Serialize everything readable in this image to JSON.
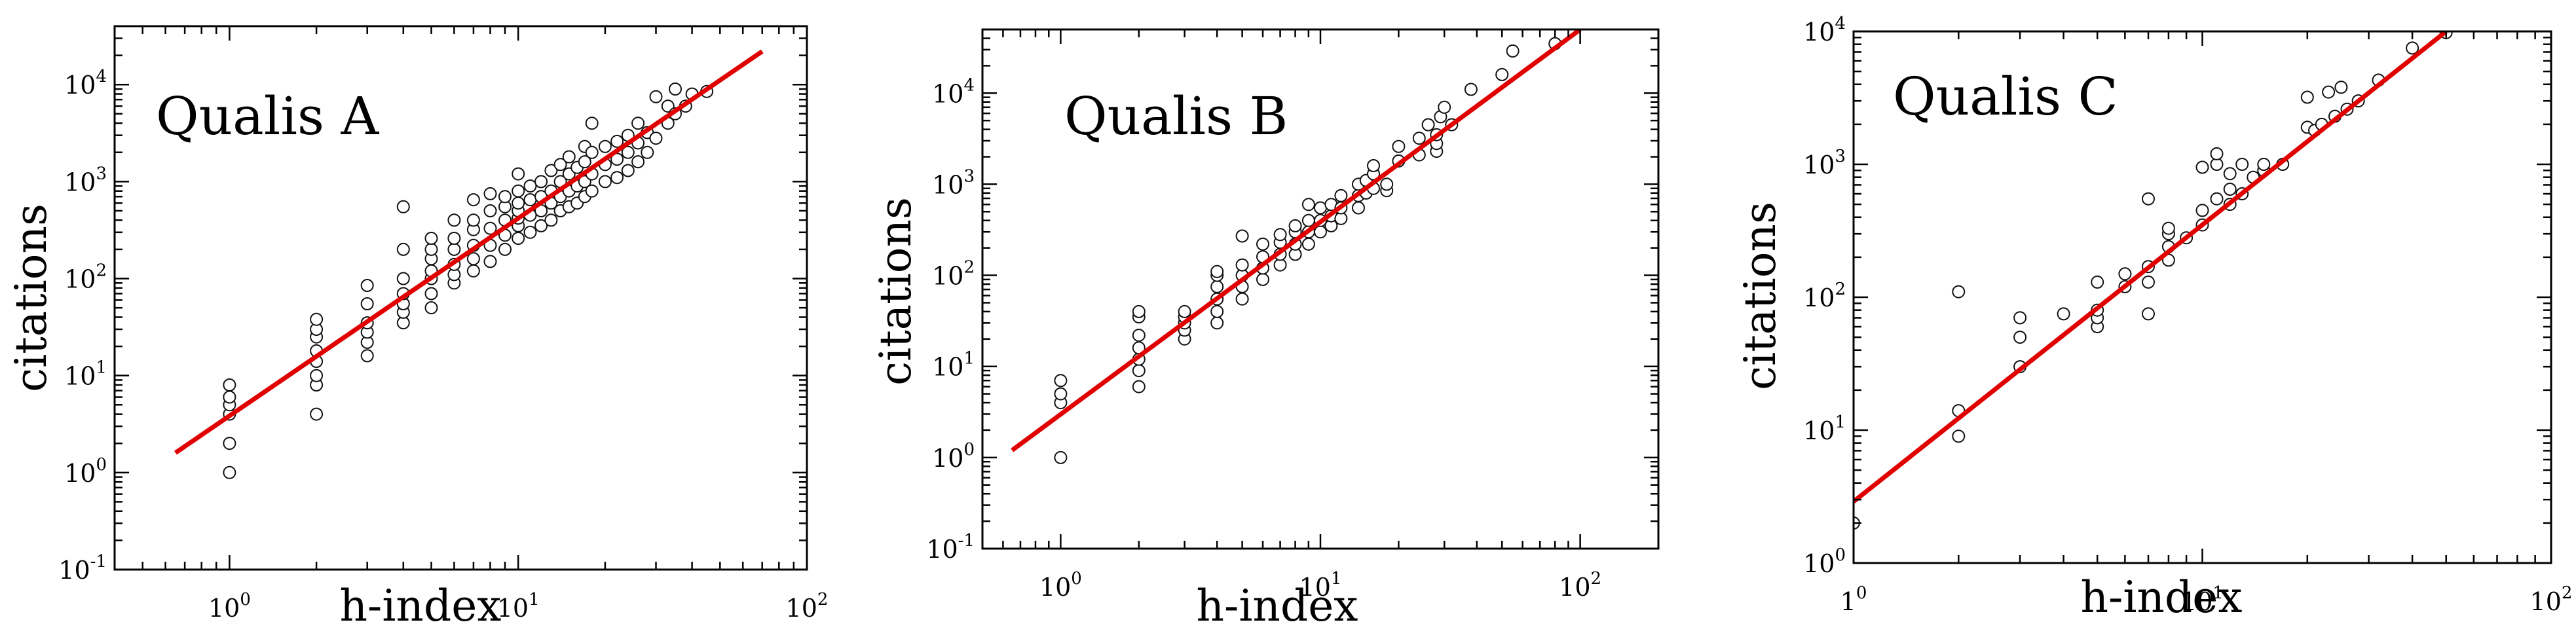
{
  "chart_data": [
    {
      "type": "scatter",
      "title": "Qualis A",
      "xlabel": "h-index",
      "ylabel": "citations",
      "xscale": "log",
      "yscale": "log",
      "xlim": [
        0.4,
        100
      ],
      "ylim": [
        0.1,
        40000
      ],
      "xticks": [
        {
          "base": "10",
          "exp": "0",
          "value": 1
        },
        {
          "base": "10",
          "exp": "1",
          "value": 10
        },
        {
          "base": "10",
          "exp": "2",
          "value": 100
        }
      ],
      "yticks": [
        {
          "base": "10",
          "exp": "-1",
          "value": 0.1
        },
        {
          "base": "10",
          "exp": "0",
          "value": 1
        },
        {
          "base": "10",
          "exp": "1",
          "value": 10
        },
        {
          "base": "10",
          "exp": "2",
          "value": 100
        },
        {
          "base": "10",
          "exp": "3",
          "value": 1000
        },
        {
          "base": "10",
          "exp": "4",
          "value": 10000
        }
      ],
      "grid": false,
      "fit_line": {
        "color": "#e00000",
        "x": [
          0.65,
          70
        ],
        "y": [
          1.6,
          22000
        ]
      },
      "points": [
        [
          1,
          1
        ],
        [
          1,
          2
        ],
        [
          1,
          4
        ],
        [
          1,
          5
        ],
        [
          1,
          6
        ],
        [
          1,
          8
        ],
        [
          2,
          4
        ],
        [
          2,
          8
        ],
        [
          2,
          10
        ],
        [
          2,
          14
        ],
        [
          2,
          18
        ],
        [
          2,
          25
        ],
        [
          2,
          30
        ],
        [
          2,
          38
        ],
        [
          3,
          16
        ],
        [
          3,
          22
        ],
        [
          3,
          28
        ],
        [
          3,
          35
        ],
        [
          3,
          55
        ],
        [
          3,
          85
        ],
        [
          4,
          35
        ],
        [
          4,
          45
        ],
        [
          4,
          55
        ],
        [
          4,
          70
        ],
        [
          4,
          100
        ],
        [
          4,
          200
        ],
        [
          4,
          550
        ],
        [
          5,
          50
        ],
        [
          5,
          70
        ],
        [
          5,
          100
        ],
        [
          5,
          120
        ],
        [
          5,
          160
        ],
        [
          5,
          200
        ],
        [
          5,
          260
        ],
        [
          6,
          90
        ],
        [
          6,
          110
        ],
        [
          6,
          140
        ],
        [
          6,
          200
        ],
        [
          6,
          260
        ],
        [
          6,
          400
        ],
        [
          7,
          120
        ],
        [
          7,
          160
        ],
        [
          7,
          220
        ],
        [
          7,
          320
        ],
        [
          7,
          400
        ],
        [
          7,
          650
        ],
        [
          8,
          150
        ],
        [
          8,
          220
        ],
        [
          8,
          330
        ],
        [
          8,
          500
        ],
        [
          8,
          750
        ],
        [
          9,
          200
        ],
        [
          9,
          280
        ],
        [
          9,
          400
        ],
        [
          9,
          550
        ],
        [
          9,
          700
        ],
        [
          10,
          260
        ],
        [
          10,
          350
        ],
        [
          10,
          420
        ],
        [
          10,
          500
        ],
        [
          10,
          600
        ],
        [
          10,
          800
        ],
        [
          10,
          1200
        ],
        [
          11,
          300
        ],
        [
          11,
          450
        ],
        [
          11,
          650
        ],
        [
          11,
          900
        ],
        [
          12,
          350
        ],
        [
          12,
          500
        ],
        [
          12,
          700
        ],
        [
          12,
          1000
        ],
        [
          13,
          400
        ],
        [
          13,
          600
        ],
        [
          13,
          800
        ],
        [
          13,
          1300
        ],
        [
          14,
          500
        ],
        [
          14,
          700
        ],
        [
          14,
          1000
        ],
        [
          14,
          1500
        ],
        [
          15,
          550
        ],
        [
          15,
          800
        ],
        [
          15,
          1200
        ],
        [
          15,
          1800
        ],
        [
          16,
          600
        ],
        [
          16,
          900
        ],
        [
          16,
          1400
        ],
        [
          17,
          700
        ],
        [
          17,
          1000
        ],
        [
          17,
          1600
        ],
        [
          17,
          2300
        ],
        [
          18,
          800
        ],
        [
          18,
          1200
        ],
        [
          18,
          2000
        ],
        [
          18,
          4000
        ],
        [
          20,
          1000
        ],
        [
          20,
          1500
        ],
        [
          20,
          2300
        ],
        [
          22,
          1100
        ],
        [
          22,
          1700
        ],
        [
          22,
          2600
        ],
        [
          24,
          1300
        ],
        [
          24,
          2000
        ],
        [
          24,
          3000
        ],
        [
          26,
          1600
        ],
        [
          26,
          2500
        ],
        [
          26,
          4000
        ],
        [
          28,
          2000
        ],
        [
          28,
          3200
        ],
        [
          30,
          2800
        ],
        [
          30,
          7500
        ],
        [
          33,
          4000
        ],
        [
          33,
          6000
        ],
        [
          35,
          5000
        ],
        [
          35,
          9000
        ],
        [
          38,
          6000
        ],
        [
          40,
          8000
        ],
        [
          45,
          8500
        ]
      ]
    },
    {
      "type": "scatter",
      "title": "Qualis B",
      "xlabel": "h-index",
      "ylabel": "citations",
      "xscale": "log",
      "yscale": "log",
      "xlim": [
        0.5,
        200
      ],
      "ylim": [
        0.1,
        50000
      ],
      "xticks": [
        {
          "base": "10",
          "exp": "0",
          "value": 1
        },
        {
          "base": "10",
          "exp": "1",
          "value": 10
        },
        {
          "base": "10",
          "exp": "2",
          "value": 100
        }
      ],
      "yticks": [
        {
          "base": "10",
          "exp": "-1",
          "value": 0.1
        },
        {
          "base": "10",
          "exp": "0",
          "value": 1
        },
        {
          "base": "10",
          "exp": "1",
          "value": 10
        },
        {
          "base": "10",
          "exp": "2",
          "value": 100
        },
        {
          "base": "10",
          "exp": "3",
          "value": 1000
        },
        {
          "base": "10",
          "exp": "4",
          "value": 10000
        }
      ],
      "grid": false,
      "fit_line": {
        "color": "#e00000",
        "x": [
          0.65,
          100
        ],
        "y": [
          1.2,
          50000
        ]
      },
      "points": [
        [
          1,
          1
        ],
        [
          1,
          4
        ],
        [
          1,
          5
        ],
        [
          1,
          7
        ],
        [
          2,
          6
        ],
        [
          2,
          9
        ],
        [
          2,
          12
        ],
        [
          2,
          16
        ],
        [
          2,
          22
        ],
        [
          2,
          35
        ],
        [
          2,
          40
        ],
        [
          3,
          20
        ],
        [
          3,
          25
        ],
        [
          3,
          30
        ],
        [
          3,
          35
        ],
        [
          3,
          40
        ],
        [
          4,
          30
        ],
        [
          4,
          40
        ],
        [
          4,
          55
        ],
        [
          4,
          75
        ],
        [
          4,
          100
        ],
        [
          4,
          110
        ],
        [
          5,
          55
        ],
        [
          5,
          75
        ],
        [
          5,
          100
        ],
        [
          5,
          130
        ],
        [
          5,
          270
        ],
        [
          6,
          90
        ],
        [
          6,
          120
        ],
        [
          6,
          160
        ],
        [
          6,
          220
        ],
        [
          7,
          130
        ],
        [
          7,
          170
        ],
        [
          7,
          230
        ],
        [
          7,
          280
        ],
        [
          8,
          170
        ],
        [
          8,
          220
        ],
        [
          8,
          300
        ],
        [
          8,
          350
        ],
        [
          9,
          220
        ],
        [
          9,
          300
        ],
        [
          9,
          400
        ],
        [
          9,
          600
        ],
        [
          10,
          300
        ],
        [
          10,
          400
        ],
        [
          10,
          550
        ],
        [
          11,
          350
        ],
        [
          11,
          450
        ],
        [
          11,
          600
        ],
        [
          12,
          420
        ],
        [
          12,
          550
        ],
        [
          12,
          750
        ],
        [
          14,
          550
        ],
        [
          14,
          750
        ],
        [
          14,
          1000
        ],
        [
          15,
          800
        ],
        [
          15,
          1100
        ],
        [
          16,
          900
        ],
        [
          16,
          1300
        ],
        [
          16,
          1600
        ],
        [
          18,
          850
        ],
        [
          18,
          1000
        ],
        [
          20,
          1800
        ],
        [
          20,
          2600
        ],
        [
          24,
          2100
        ],
        [
          24,
          3200
        ],
        [
          26,
          4500
        ],
        [
          28,
          2300
        ],
        [
          28,
          2800
        ],
        [
          28,
          3500
        ],
        [
          29,
          5500
        ],
        [
          30,
          7000
        ],
        [
          32,
          4500
        ],
        [
          38,
          11000
        ],
        [
          50,
          16000
        ],
        [
          55,
          29000
        ],
        [
          80,
          35000
        ]
      ]
    },
    {
      "type": "scatter",
      "title": "Qualis C",
      "xlabel": "h-index",
      "ylabel": "citations",
      "xscale": "log",
      "yscale": "log",
      "xlim": [
        1,
        100
      ],
      "ylim": [
        1,
        10000
      ],
      "xticks": [
        {
          "base": "1",
          "exp": "0",
          "value": 1
        },
        {
          "base": "10",
          "exp": "1",
          "value": 10
        },
        {
          "base": "10",
          "exp": "2",
          "value": 100
        }
      ],
      "yticks": [
        {
          "base": "10",
          "exp": "0",
          "value": 1
        },
        {
          "base": "10",
          "exp": "1",
          "value": 10
        },
        {
          "base": "10",
          "exp": "2",
          "value": 100
        },
        {
          "base": "10",
          "exp": "3",
          "value": 1000
        },
        {
          "base": "10",
          "exp": "4",
          "value": 10000
        }
      ],
      "grid": false,
      "fit_line": {
        "color": "#e00000",
        "x": [
          1,
          50
        ],
        "y": [
          2.9,
          10000
        ]
      },
      "points": [
        [
          1,
          2
        ],
        [
          2,
          9
        ],
        [
          2,
          14
        ],
        [
          2,
          110
        ],
        [
          3,
          30
        ],
        [
          3,
          50
        ],
        [
          3,
          70
        ],
        [
          4,
          75
        ],
        [
          5,
          60
        ],
        [
          5,
          70
        ],
        [
          5,
          80
        ],
        [
          5,
          130
        ],
        [
          6,
          120
        ],
        [
          6,
          150
        ],
        [
          7,
          75
        ],
        [
          7,
          130
        ],
        [
          7,
          170
        ],
        [
          7,
          550
        ],
        [
          8,
          190
        ],
        [
          8,
          240
        ],
        [
          8,
          300
        ],
        [
          8,
          330
        ],
        [
          9,
          280
        ],
        [
          10,
          350
        ],
        [
          10,
          450
        ],
        [
          10,
          950
        ],
        [
          11,
          550
        ],
        [
          11,
          1000
        ],
        [
          11,
          1200
        ],
        [
          12,
          500
        ],
        [
          12,
          650
        ],
        [
          12,
          850
        ],
        [
          13,
          600
        ],
        [
          13,
          1000
        ],
        [
          14,
          800
        ],
        [
          15,
          900
        ],
        [
          15,
          1000
        ],
        [
          17,
          1000
        ],
        [
          20,
          1900
        ],
        [
          20,
          3200
        ],
        [
          21,
          1800
        ],
        [
          22,
          2000
        ],
        [
          23,
          3500
        ],
        [
          24,
          2300
        ],
        [
          25,
          3800
        ],
        [
          26,
          2600
        ],
        [
          28,
          3000
        ],
        [
          32,
          4300
        ],
        [
          40,
          7500
        ],
        [
          50,
          9800
        ]
      ]
    }
  ]
}
